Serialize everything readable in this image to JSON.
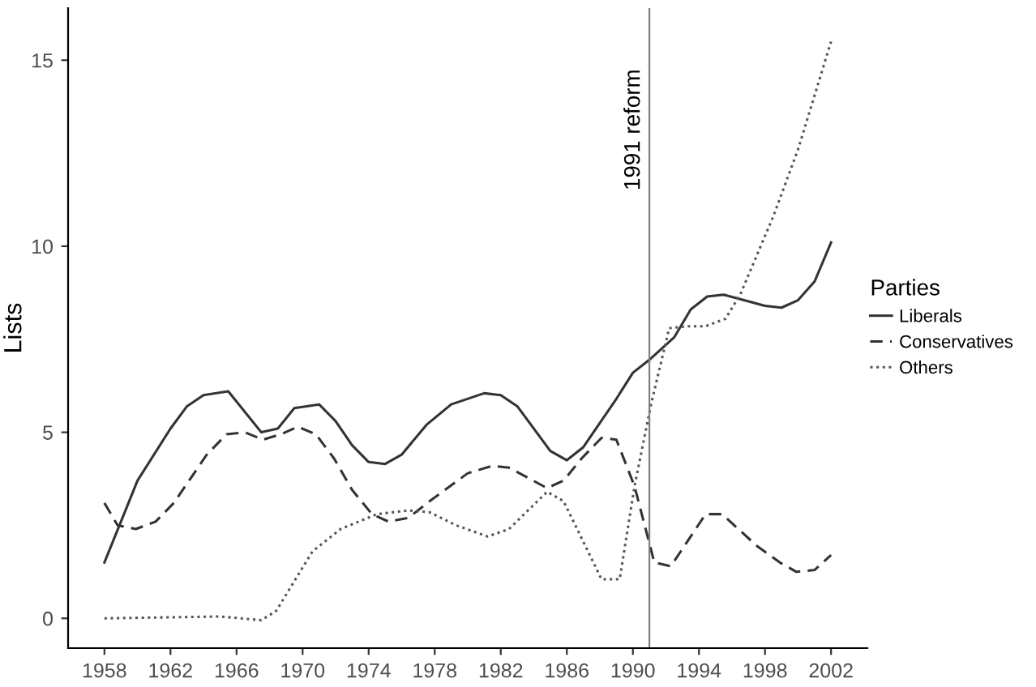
{
  "chart_data": {
    "type": "line",
    "ylabel": "Lists",
    "legend_title": "Parties",
    "legend": "right",
    "grid": false,
    "xlim": [
      1955.8,
      2004.2
    ],
    "ylim": [
      -0.8,
      16.4
    ],
    "xticks": [
      1958,
      1962,
      1966,
      1970,
      1974,
      1978,
      1982,
      1986,
      1990,
      1994,
      1998,
      2002
    ],
    "yticks": [
      0,
      5,
      10,
      15
    ],
    "ref_lines": [
      {
        "axis": "x",
        "value": 1991,
        "label": "1991 reform",
        "color": "#7f7f7f",
        "line_style": "solid"
      }
    ],
    "series": [
      {
        "name": "Liberals",
        "color": "#333333",
        "line_style": "solid",
        "x": [
          1958,
          1959,
          1960,
          1962,
          1963,
          1964,
          1965.5,
          1967.5,
          1968.5,
          1969.5,
          1971,
          1972,
          1973,
          1974,
          1975,
          1976,
          1977.5,
          1979,
          1981,
          1982,
          1983,
          1985,
          1986,
          1987,
          1989,
          1990,
          1991,
          1992.5,
          1993.5,
          1994.5,
          1995.5,
          1998,
          1999,
          2000,
          2001,
          2002
        ],
        "values": [
          1.5,
          2.6,
          3.7,
          5.1,
          5.7,
          6.0,
          6.1,
          5.0,
          5.1,
          5.65,
          5.75,
          5.3,
          4.65,
          4.2,
          4.15,
          4.4,
          5.2,
          5.75,
          6.05,
          6.0,
          5.7,
          4.5,
          4.25,
          4.6,
          5.9,
          6.6,
          6.95,
          7.55,
          8.3,
          8.65,
          8.7,
          8.4,
          8.35,
          8.55,
          9.05,
          10.1
        ]
      },
      {
        "name": "Conservatives",
        "color": "#333333",
        "line_style": "dashed",
        "x": [
          1958,
          1958.8,
          1959.9,
          1961.1,
          1962.2,
          1964.2,
          1965.4,
          1966.5,
          1967.6,
          1968.7,
          1969.7,
          1970.8,
          1971.9,
          1973,
          1974.2,
          1975.2,
          1976.4,
          1977.7,
          1980,
          1981.5,
          1982.5,
          1984.8,
          1985.8,
          1986.9,
          1988.1,
          1989,
          1990.1,
          1991.3,
          1992.3,
          1994.4,
          1995.4,
          1997.5,
          1998.9,
          1999.9,
          2001,
          2002
        ],
        "values": [
          3.1,
          2.5,
          2.4,
          2.6,
          3.1,
          4.4,
          4.95,
          5.0,
          4.8,
          4.95,
          5.15,
          4.95,
          4.3,
          3.45,
          2.8,
          2.6,
          2.7,
          3.15,
          3.9,
          4.1,
          4.05,
          3.5,
          3.7,
          4.3,
          4.85,
          4.8,
          3.55,
          1.5,
          1.4,
          2.8,
          2.8,
          1.95,
          1.5,
          1.25,
          1.3,
          1.7
        ]
      },
      {
        "name": "Others",
        "color": "#555555",
        "line_style": "dotted",
        "x": [
          1958,
          1965,
          1967.5,
          1968.4,
          1970.6,
          1972.3,
          1974.5,
          1976.4,
          1977.7,
          1979.3,
          1981.2,
          1982.5,
          1984.8,
          1985.8,
          1986.9,
          1988.1,
          1989.2,
          1990.1,
          1991.1,
          1992.2,
          1993.3,
          1994.4,
          1995.6,
          1996.5,
          1998.5,
          2000,
          2002
        ],
        "values": [
          0.0,
          0.05,
          -0.05,
          0.2,
          1.8,
          2.4,
          2.8,
          2.9,
          2.85,
          2.5,
          2.2,
          2.4,
          3.4,
          3.15,
          2.15,
          1.05,
          1.05,
          3.55,
          5.75,
          7.8,
          7.85,
          7.85,
          8.05,
          8.7,
          10.8,
          12.6,
          15.5
        ]
      }
    ]
  }
}
